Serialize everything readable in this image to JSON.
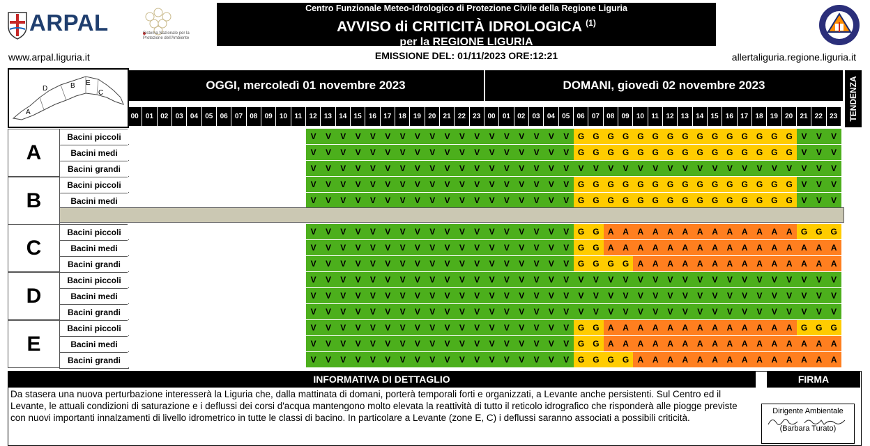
{
  "header": {
    "org_line": "Centro Funzionale Meteo-Idrologico di Protezione Civile della Regione Liguria",
    "title": "AVVISO di CRITICITÀ IDROLOGICA",
    "title_note": "(1)",
    "subtitle": "per la REGIONE LIGURIA",
    "emission": "EMISSIONE DEL: 01/11/2023 ORE:12:21",
    "website_left": "www.arpal.liguria.it",
    "website_right": "allertaliguria.regione.liguria.it",
    "arpal_logo_text": "ARPAL",
    "snpa_text": "Sistema Nazionale per la Protezione dell'Ambiente",
    "pc_logo_text": "PROTEZIONE CIVILE REGIONE LIGURIA"
  },
  "map": {
    "zone_labels": [
      "A",
      "B",
      "C",
      "D",
      "E"
    ]
  },
  "days": [
    {
      "label": "OGGI, mercoledì 01 novembre 2023"
    },
    {
      "label": "DOMANI, giovedì 02 novembre 2023"
    }
  ],
  "hours": [
    "00",
    "01",
    "02",
    "03",
    "04",
    "05",
    "06",
    "07",
    "08",
    "09",
    "10",
    "11",
    "12",
    "13",
    "14",
    "15",
    "16",
    "17",
    "18",
    "19",
    "20",
    "21",
    "22",
    "23"
  ],
  "tendenza_label": "TENDENZA",
  "colors": {
    "V": "#4caf1c",
    "G": "#ffcc00",
    "A": "#ff7f1f",
    "empty": "#ffffff",
    "disabled": "#cbc8b3"
  },
  "zones": [
    {
      "zone": "A",
      "rows": [
        {
          "label": "Bacini piccoli",
          "today": "------------VVVVVVVVVVVV",
          "tomorrow": "VVVVVVGGGGGGGGGGGGGGGVVV"
        },
        {
          "label": "Bacini medi",
          "today": "------------VVVVVVVVVVVV",
          "tomorrow": "VVVVVVGGGGGGGGGGGGGGGVVV"
        },
        {
          "label": "Bacini grandi",
          "today": "------------VVVVVVVVVVVV",
          "tomorrow": "VVVVVVVVVVVVVVVVVVVVVVVV"
        }
      ]
    },
    {
      "zone": "B",
      "rows": [
        {
          "label": "Bacini piccoli",
          "today": "------------VVVVVVVVVVVV",
          "tomorrow": "VVVVVVGGGGGGGGGGGGGGGVVV"
        },
        {
          "label": "Bacini medi",
          "today": "------------VVVVVVVVVVVV",
          "tomorrow": "VVVVVVGGGGGGGGGGGGGGGVVV"
        }
      ]
    },
    {
      "zone": "C",
      "rows": [
        {
          "label": "Bacini piccoli",
          "today": "------------VVVVVVVVVVVV",
          "tomorrow": "VVVVVVGGAAAAAAAAAAAAAGGG"
        },
        {
          "label": "Bacini medi",
          "today": "------------VVVVVVVVVVVV",
          "tomorrow": "VVVVVVGGAAAAAAAAAAAAAAAA"
        },
        {
          "label": "Bacini grandi",
          "today": "------------VVVVVVVVVVVV",
          "tomorrow": "VVVVVVGGGGAAAAAAAAAAAAAA"
        }
      ]
    },
    {
      "zone": "D",
      "rows": [
        {
          "label": "Bacini piccoli",
          "today": "------------VVVVVVVVVVVV",
          "tomorrow": "VVVVVVVVVVVVVVVVVVVVVVVV"
        },
        {
          "label": "Bacini medi",
          "today": "------------VVVVVVVVVVVV",
          "tomorrow": "VVVVVVVVVVVVVVVVVVVVVVVV"
        },
        {
          "label": "Bacini grandi",
          "today": "------------VVVVVVVVVVVV",
          "tomorrow": "VVVVVVVVVVVVVVVVVVVVVVVV"
        }
      ]
    },
    {
      "zone": "E",
      "rows": [
        {
          "label": "Bacini piccoli",
          "today": "------------VVVVVVVVVVVV",
          "tomorrow": "VVVVVVGGAAAAAAAAAAAAAGGG"
        },
        {
          "label": "Bacini medi",
          "today": "------------VVVVVVVVVVVV",
          "tomorrow": "VVVVVVGGAAAAAAAAAAAAAAAA"
        },
        {
          "label": "Bacini grandi",
          "today": "------------VVVVVVVVVVVV",
          "tomorrow": "VVVVVVGGGGAAAAAAAAAAAAAA"
        }
      ]
    }
  ],
  "info": {
    "title": "INFORMATIVA DI DETTAGLIO",
    "text": "Da stasera una nuova perturbazione interesserà la Liguria che, dalla mattinata di domani, porterà temporali forti e organizzati, a Levante anche persistenti. Sul Centro ed il Levante, le attuali condizioni di saturazione e i deflussi dei corsi d'acqua mantengono molto elevata la reattività di tutto il reticolo idrografico che risponderà alle piogge previste con nuovi importanti innalzamenti di livello idrometrico in tutte le classi di bacino. In particolare a Levante (zone E, C) i deflussi saranno associati a possibili criticità."
  },
  "firma": {
    "title": "FIRMA",
    "role": "Dirigente Ambientale",
    "signature": "Barbara Turato",
    "name": "(Barbara Turato)"
  }
}
